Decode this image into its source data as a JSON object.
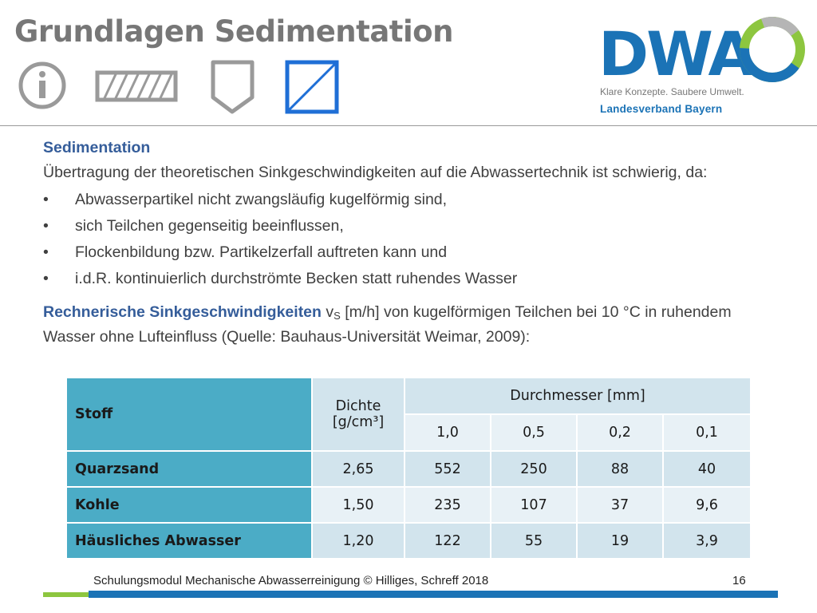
{
  "slide": {
    "title": "Grundlagen Sedimentation",
    "icons": [
      "info-icon",
      "hatched-rectangle-icon",
      "pentagon-icon",
      "diagonal-square-icon"
    ]
  },
  "logo": {
    "wordmark": "DWA",
    "slogan": "Klare Konzepte. Saubere Umwelt.",
    "region": "Landesverband Bayern"
  },
  "content": {
    "heading": "Sedimentation",
    "intro": "Übertragung der theoretischen Sinkgeschwindigkeiten auf die Abwassertechnik ist schwierig, da:",
    "bullet_char": "•",
    "bullets": [
      "Abwasserpartikel nicht zwangsläufig kugelförmig sind,",
      "sich Teilchen gegenseitig beeinflussen,",
      "Flockenbildung  bzw. Partikelzerfall auftreten kann und",
      "i.d.R. kontinuierlich durchströmte Becken statt ruhendes Wasser"
    ],
    "calc_highlight": "Rechnerische Sinkgeschwindigkeiten",
    "calc_var": "v",
    "calc_sub": "S",
    "calc_rest": " [m/h] von kugelförmigen Teilchen bei 10 °C in ruhendem Wasser ohne Lufteinfluss (Quelle: Bauhaus-Universität Weimar, 2009):"
  },
  "table": {
    "header": {
      "stoff": "Stoff",
      "dichte": "Dichte [g/cm³]",
      "durchmesser": "Durchmesser [mm]",
      "diameters": [
        "1,0",
        "0,5",
        "0,2",
        "0,1"
      ]
    },
    "rows": [
      {
        "stoff": "Quarzsand",
        "dichte": "2,65",
        "values": [
          "552",
          "250",
          "88",
          "40"
        ]
      },
      {
        "stoff": "Kohle",
        "dichte": "1,50",
        "values": [
          "235",
          "107",
          "37",
          "9,6"
        ]
      },
      {
        "stoff": "Häusliches Abwasser",
        "dichte": "1,20",
        "values": [
          "122",
          "55",
          "19",
          "3,9"
        ]
      }
    ]
  },
  "footer": {
    "text": "Schulungsmodul Mechanische Abwasserreinigung © Hilliges, Schreff  2018",
    "page": "16"
  },
  "colors": {
    "brand_blue": "#1b73b6",
    "brand_green": "#8dc63f",
    "table_accent": "#4bacc6",
    "heading_blue": "#355d9a"
  }
}
